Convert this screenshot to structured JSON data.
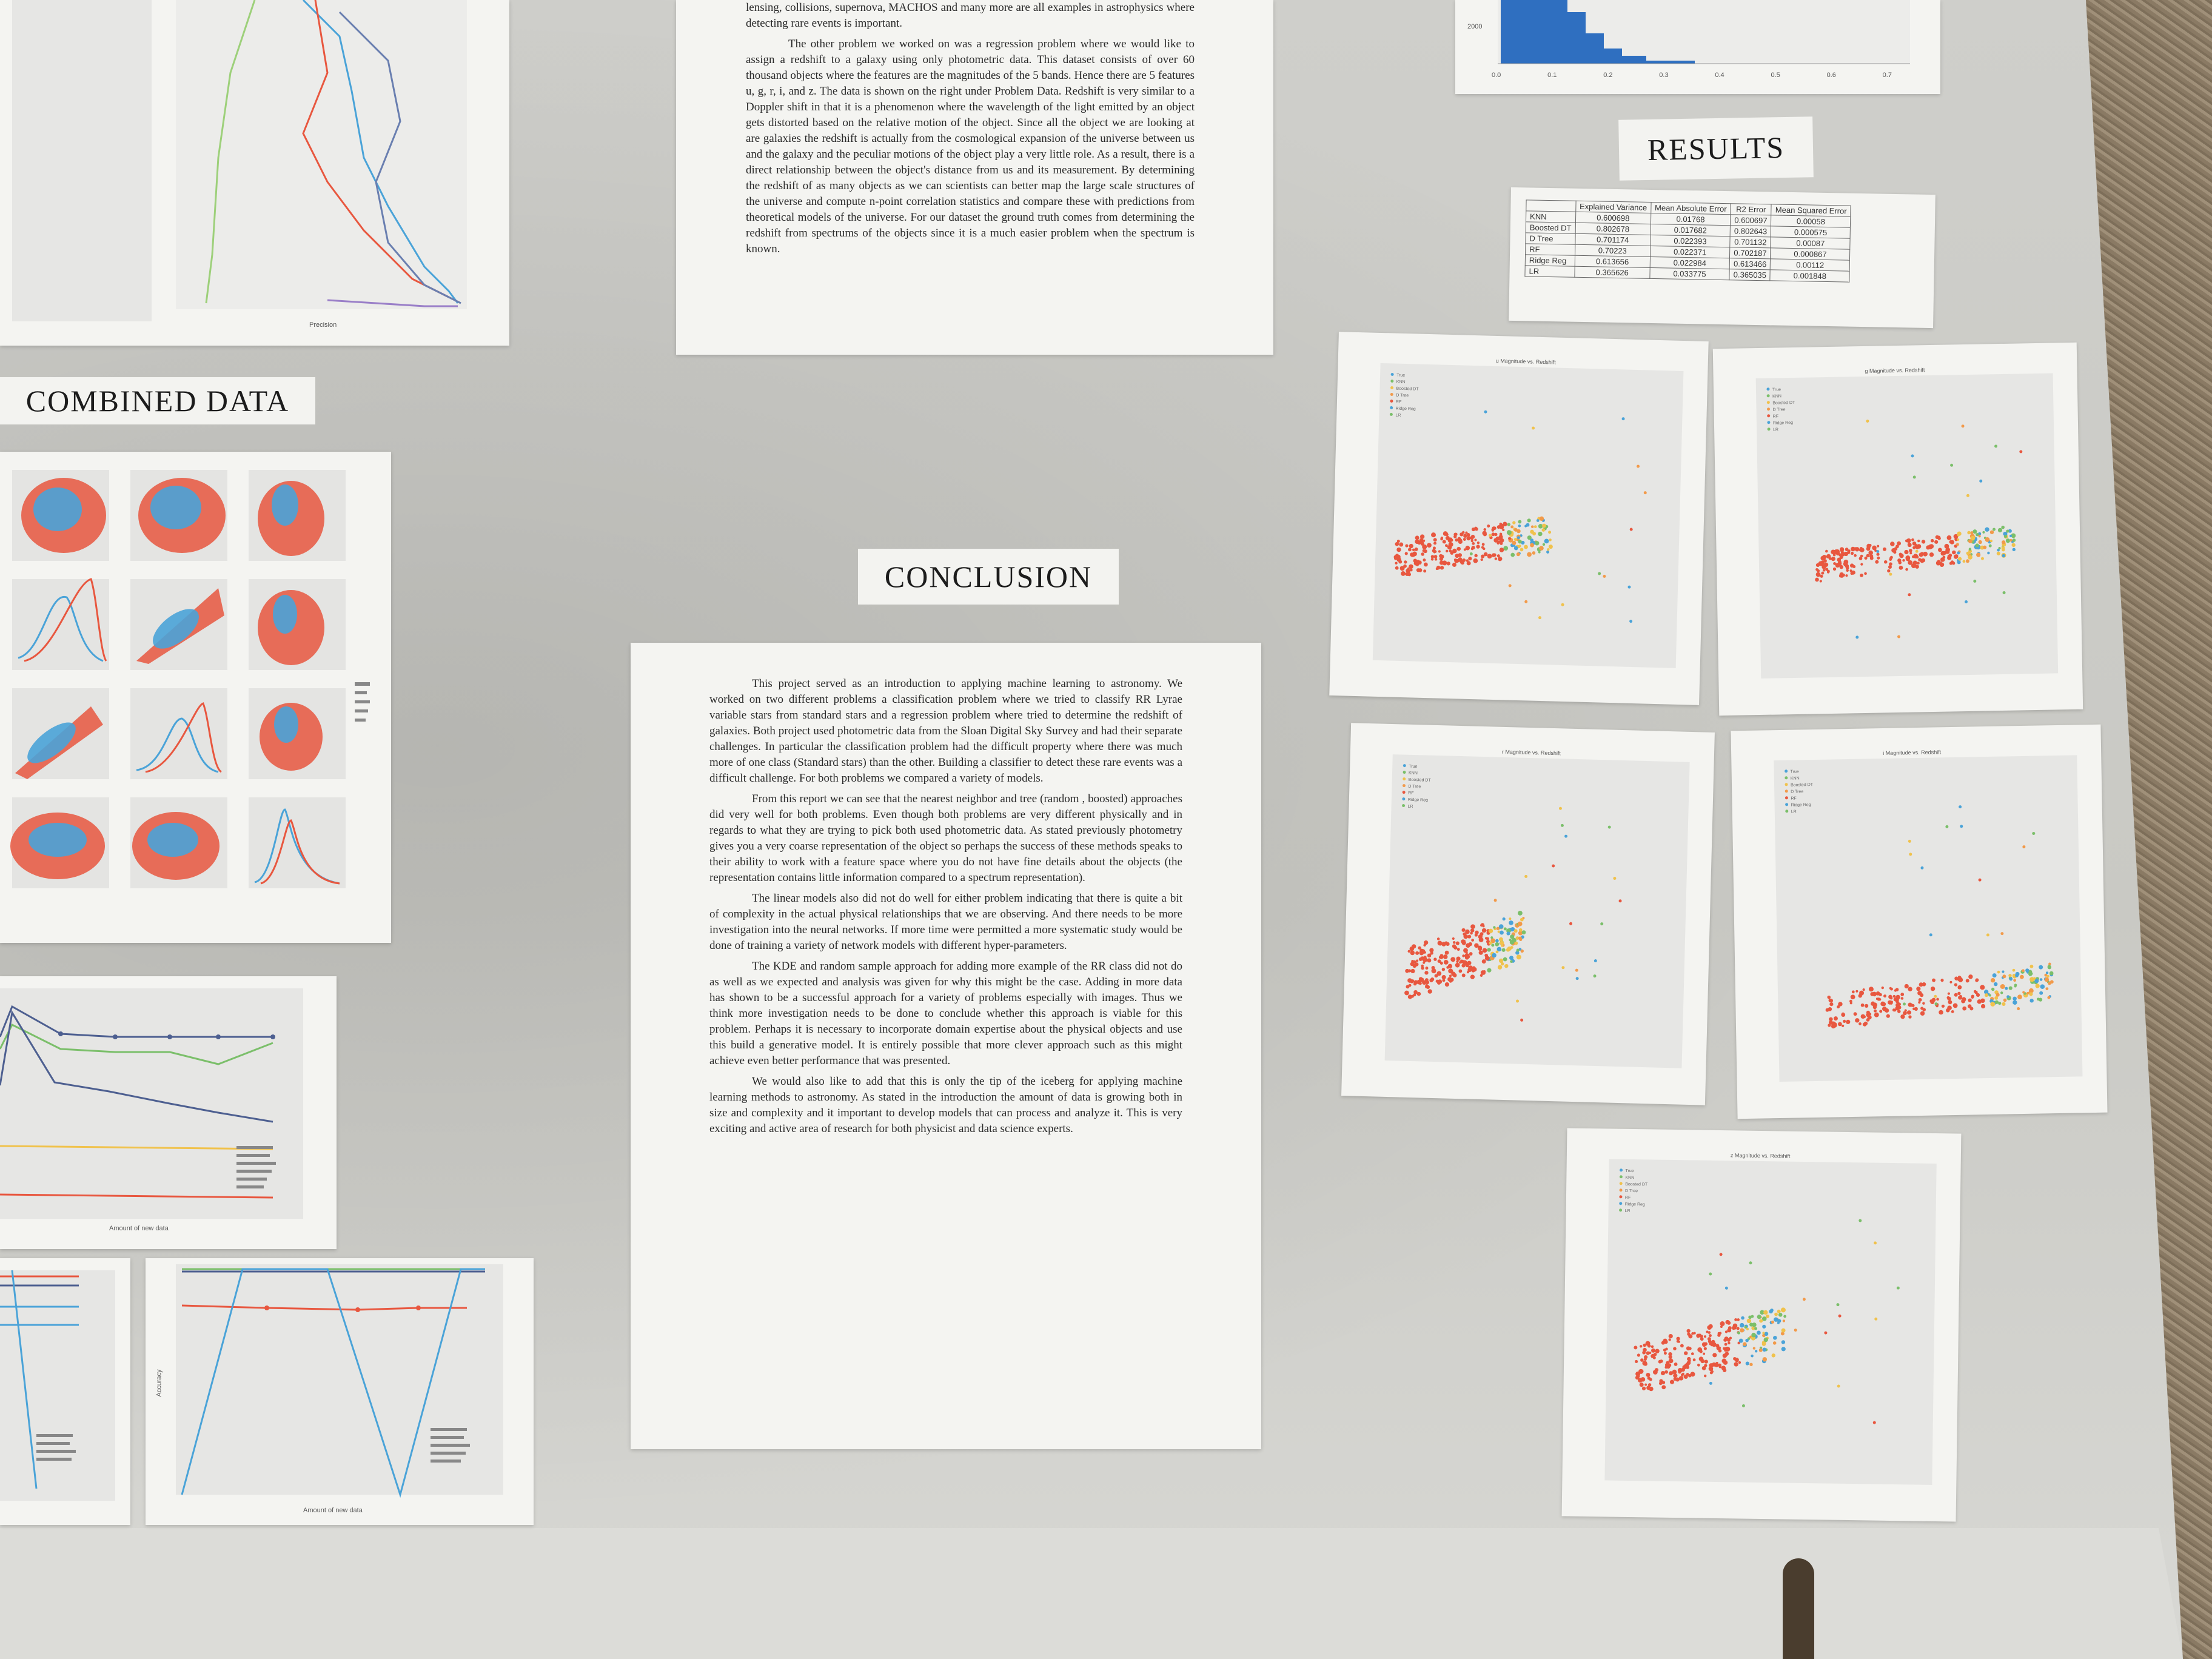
{
  "intro_text_fragment": "lensing, collisions, supernova, MACHOS and many more are all examples in astrophysics where detecting rare events is important.",
  "problem_paragraph": "The other problem we worked on was a regression problem where we would like to assign a redshift to a galaxy using only photometric data. This dataset consists of over 60 thousand objects where the features are the magnitudes of the 5 bands. Hence there are 5 features u, g, r, i, and z. The data is shown on the right under Problem Data. Redshift is very similar to a Doppler shift in that it is a phenomenon where the wavelength of the light emitted by an object gets distorted based on the relative motion of the object. Since all the object we are looking at are galaxies the redshift is actually from the cosmological expansion of the universe between us and the galaxy and the peculiar motions of the object play a very little role. As a result, there is a direct relationship between the object's distance from us and its measurement. By determining the redshift of as many objects as we can scientists can better map the large scale structures of the universe and compute n-point correlation statistics and compare these with predictions from theoretical models of the universe. For our dataset the ground truth comes from determining the redshift from spectrums of the objects since it is a much easier problem when the spectrum is known.",
  "headings": {
    "combined_data": "COMBINED DATA",
    "conclusion": "CONCLUSION",
    "results": "RESULTS"
  },
  "conclusion_paragraphs": [
    "This project served as an introduction to applying machine learning to astronomy. We worked on two different problems a classification problem where we tried to classify RR Lyrae variable stars from standard stars and a regression problem where tried to determine the redshift of galaxies. Both project used photometric data from the Sloan Digital Sky Survey and had their separate challenges. In particular the classification problem had the difficult property where there was much more of one class (Standard stars) than the other. Building a classifier to detect these rare events was a difficult challenge. For both problems we compared a variety of models.",
    "From this report we can see that the nearest neighbor and tree (random , boosted) approaches did very well for both problems. Even though both problems are very different physically and in regards to what they are trying to pick both used photometric data. As stated previously photometry gives you a very coarse representation of the object so perhaps the success of these methods speaks to their ability to work with a feature space where you do not have fine details about the objects (the representation contains little information compared to a spectrum representation).",
    "The linear models also did not do well for either problem indicating that there is quite a bit of complexity in the actual physical relationships that we are observing. And there needs to be more investigation into the neural networks. If more time were permitted a more systematic study would be done of training a variety of network models with different hyper-parameters.",
    "The KDE and random sample approach for adding more example of the RR class did not do as well as we expected and analysis was given for why this might be the case. Adding in more data has shown to be a successful approach for a variety of problems especially with images. Thus we think more investigation needs to be done to conclude whether this approach is viable for this problem. Perhaps it is necessary to incorporate domain expertise about the physical objects and use this build a generative model. It is entirely possible that more clever approach such as this might achieve even better performance that was presented.",
    "We would also like to add that this is only the tip of the iceberg for applying machine learning methods to astronomy. As stated in the introduction the amount of data is growing both in size and complexity and it important to develop models that can process and analyze it. This is very exciting and active area of research for both physicist and data science experts."
  ],
  "results_table": {
    "headers": [
      "",
      "Explained Variance",
      "Mean Absolute Error",
      "R2 Error",
      "Mean Squared Error"
    ],
    "rows": [
      [
        "KNN",
        "0.600698",
        "0.01768",
        "0.600697",
        "0.00058"
      ],
      [
        "Boosted DT",
        "0.802678",
        "0.017682",
        "0.802643",
        "0.000575"
      ],
      [
        "D Tree",
        "0.701174",
        "0.022393",
        "0.701132",
        "0.00087"
      ],
      [
        "RF",
        "0.70223",
        "0.022371",
        "0.702187",
        "0.000867"
      ],
      [
        "Ridge Reg",
        "0.613656",
        "0.022984",
        "0.613466",
        "0.00112"
      ],
      [
        "LR",
        "0.365626",
        "0.033775",
        "0.365035",
        "0.001848"
      ]
    ]
  },
  "histogram_ticks": [
    "0.0",
    "0.1",
    "0.2",
    "0.3",
    "0.4",
    "0.5",
    "0.6",
    "0.7"
  ],
  "histogram_ytick": "2000",
  "scatter_titles": [
    "u Magnitude vs. Redshift",
    "g Magnitude vs. Redshift",
    "r Magnitude vs. Redshift",
    "i Magnitude vs. Redshift",
    "z Magnitude vs. Redshift"
  ],
  "scatter_legend": [
    "True",
    "KNN",
    "Boosted DT",
    "D Tree",
    "RF",
    "Ridge Reg",
    "LR"
  ],
  "line_chart_xlabel": "Amount of new data",
  "line_chart_legend": [
    "KNN",
    "D Tree",
    "Naive Bayes",
    "Random Forest",
    "Log Reg",
    "MNN"
  ],
  "precision_xlabel": "Precision",
  "accuracy_ylabel": "Accuracy",
  "colors": {
    "scatter_red": "#e8573f",
    "scatter_blue": "#4aa3d8",
    "hist_blue": "#2f6fc0"
  }
}
